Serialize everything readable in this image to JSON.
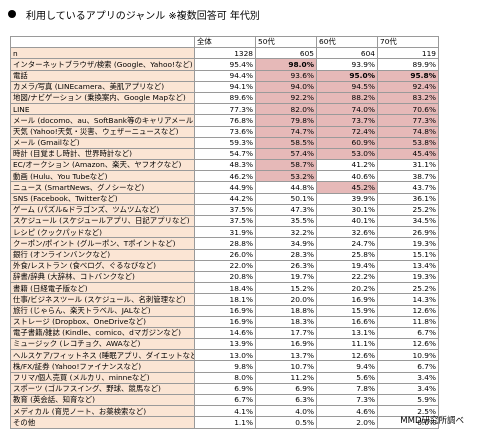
{
  "title": "利用しているアプリのジャンル ※複数回答可 年代別",
  "source": "MMD研究所調べ",
  "headers": [
    "",
    "全体",
    "50代",
    "60代",
    "70代"
  ],
  "rows": [
    {
      "label": "n",
      "values": [
        "1328",
        "605",
        "604",
        "119"
      ],
      "hl": [
        false,
        false,
        false,
        false
      ],
      "bold": [
        false,
        false,
        false,
        false
      ]
    },
    {
      "label": "インターネットブラウザ/検索 (Google、Yahoo!など)",
      "values": [
        "95.4%",
        "98.0%",
        "93.9%",
        "89.9%"
      ],
      "hl": [
        false,
        true,
        false,
        false
      ],
      "bold": [
        false,
        true,
        false,
        false
      ]
    },
    {
      "label": "電話",
      "values": [
        "94.4%",
        "93.6%",
        "95.0%",
        "95.8%"
      ],
      "hl": [
        false,
        true,
        true,
        true
      ],
      "bold": [
        false,
        false,
        true,
        true
      ]
    },
    {
      "label": "カメラ/写真 (LINEcamera、美肌アプリなど)",
      "values": [
        "94.1%",
        "94.0%",
        "94.5%",
        "92.4%"
      ],
      "hl": [
        false,
        true,
        true,
        true
      ],
      "bold": [
        false,
        false,
        false,
        false
      ]
    },
    {
      "label": "地図/ナビゲーション (乗換案内、Google Mapなど)",
      "values": [
        "89.6%",
        "92.2%",
        "88.2%",
        "83.2%"
      ],
      "hl": [
        false,
        true,
        true,
        true
      ],
      "bold": [
        false,
        false,
        false,
        false
      ]
    },
    {
      "label": "LINE",
      "values": [
        "77.3%",
        "82.0%",
        "74.0%",
        "70.6%"
      ],
      "hl": [
        false,
        true,
        true,
        true
      ],
      "bold": [
        false,
        false,
        false,
        false
      ]
    },
    {
      "label": "メール (docomo、au、SoftBank等のキャリアメール)",
      "values": [
        "76.8%",
        "79.8%",
        "73.7%",
        "77.3%"
      ],
      "hl": [
        false,
        true,
        true,
        true
      ],
      "bold": [
        false,
        false,
        false,
        false
      ]
    },
    {
      "label": "天気 (Yahoo!天気・災害、ウェザーニュースなど)",
      "values": [
        "73.6%",
        "74.7%",
        "72.4%",
        "74.8%"
      ],
      "hl": [
        false,
        true,
        true,
        true
      ],
      "bold": [
        false,
        false,
        false,
        false
      ]
    },
    {
      "label": "メール (Gmailなど)",
      "values": [
        "59.3%",
        "58.5%",
        "60.9%",
        "53.8%"
      ],
      "hl": [
        false,
        true,
        true,
        true
      ],
      "bold": [
        false,
        false,
        false,
        false
      ]
    },
    {
      "label": "時計 (目覚まし時計、世界時計など)",
      "values": [
        "54.7%",
        "57.4%",
        "53.0%",
        "45.4%"
      ],
      "hl": [
        false,
        true,
        true,
        true
      ],
      "bold": [
        false,
        false,
        false,
        false
      ]
    },
    {
      "label": "EC/オークション (Amazon、楽天、ヤフオクなど)",
      "values": [
        "48.3%",
        "58.7%",
        "41.2%",
        "31.1%"
      ],
      "hl": [
        false,
        true,
        false,
        false
      ],
      "bold": [
        false,
        false,
        false,
        false
      ]
    },
    {
      "label": "動画 (Hulu、You Tubeなど)",
      "values": [
        "46.2%",
        "53.2%",
        "40.6%",
        "38.7%"
      ],
      "hl": [
        false,
        true,
        false,
        false
      ],
      "bold": [
        false,
        false,
        false,
        false
      ]
    },
    {
      "label": "ニュース (SmartNews、グノシーなど)",
      "values": [
        "44.9%",
        "44.8%",
        "45.2%",
        "43.7%"
      ],
      "hl": [
        false,
        false,
        true,
        false
      ],
      "bold": [
        false,
        false,
        false,
        false
      ]
    },
    {
      "label": "SNS (Facebook、Twitterなど)",
      "values": [
        "44.2%",
        "50.1%",
        "39.9%",
        "36.1%"
      ],
      "hl": [
        false,
        false,
        false,
        false
      ],
      "bold": [
        false,
        false,
        false,
        false
      ]
    },
    {
      "label": "ゲーム (パズル&ドラゴンズ、ツムツムなど)",
      "values": [
        "37.5%",
        "47.3%",
        "30.1%",
        "25.2%"
      ],
      "hl": [
        false,
        false,
        false,
        false
      ],
      "bold": [
        false,
        false,
        false,
        false
      ]
    },
    {
      "label": "スケジュール (スケジュールアプリ、日記アプリなど)",
      "values": [
        "37.5%",
        "35.5%",
        "40.1%",
        "34.5%"
      ],
      "hl": [
        false,
        false,
        false,
        false
      ],
      "bold": [
        false,
        false,
        false,
        false
      ]
    },
    {
      "label": "レシピ (クックパッドなど)",
      "values": [
        "31.9%",
        "32.2%",
        "32.6%",
        "26.9%"
      ],
      "hl": [
        false,
        false,
        false,
        false
      ],
      "bold": [
        false,
        false,
        false,
        false
      ]
    },
    {
      "label": "クーポン/ポイント (グルーポン、Tポイントなど)",
      "values": [
        "28.8%",
        "34.9%",
        "24.7%",
        "19.3%"
      ],
      "hl": [
        false,
        false,
        false,
        false
      ],
      "bold": [
        false,
        false,
        false,
        false
      ]
    },
    {
      "label": "銀行 (オンラインバンクなど)",
      "values": [
        "26.0%",
        "28.3%",
        "25.8%",
        "15.1%"
      ],
      "hl": [
        false,
        false,
        false,
        false
      ],
      "bold": [
        false,
        false,
        false,
        false
      ]
    },
    {
      "label": "外食/レストラン (食べログ、ぐるなびなど)",
      "values": [
        "22.0%",
        "26.3%",
        "19.4%",
        "13.4%"
      ],
      "hl": [
        false,
        false,
        false,
        false
      ],
      "bold": [
        false,
        false,
        false,
        false
      ]
    },
    {
      "label": "辞書/辞典 (大辞林、コトバンクなど)",
      "values": [
        "20.8%",
        "19.7%",
        "22.2%",
        "19.3%"
      ],
      "hl": [
        false,
        false,
        false,
        false
      ],
      "bold": [
        false,
        false,
        false,
        false
      ]
    },
    {
      "label": "書籍 (日経電子版など)",
      "values": [
        "18.4%",
        "15.2%",
        "20.2%",
        "25.2%"
      ],
      "hl": [
        false,
        false,
        false,
        false
      ],
      "bold": [
        false,
        false,
        false,
        false
      ]
    },
    {
      "label": "仕事/ビジネスツール (スケジュール、名刺管理など)",
      "values": [
        "18.1%",
        "20.0%",
        "16.9%",
        "14.3%"
      ],
      "hl": [
        false,
        false,
        false,
        false
      ],
      "bold": [
        false,
        false,
        false,
        false
      ]
    },
    {
      "label": "旅行 (じゃらん、楽天トラベル、JALなど)",
      "values": [
        "16.9%",
        "18.8%",
        "15.9%",
        "12.6%"
      ],
      "hl": [
        false,
        false,
        false,
        false
      ],
      "bold": [
        false,
        false,
        false,
        false
      ]
    },
    {
      "label": "ストレージ (Dropbox、OneDriveなど)",
      "values": [
        "16.9%",
        "18.3%",
        "16.6%",
        "11.8%"
      ],
      "hl": [
        false,
        false,
        false,
        false
      ],
      "bold": [
        false,
        false,
        false,
        false
      ]
    },
    {
      "label": "電子書籍/雑誌 (Kindle、comico、dマガジンなど)",
      "values": [
        "14.6%",
        "17.7%",
        "13.1%",
        "6.7%"
      ],
      "hl": [
        false,
        false,
        false,
        false
      ],
      "bold": [
        false,
        false,
        false,
        false
      ]
    },
    {
      "label": "ミュージック (レコチョク、AWAなど)",
      "values": [
        "13.9%",
        "16.9%",
        "11.1%",
        "12.6%"
      ],
      "hl": [
        false,
        false,
        false,
        false
      ],
      "bold": [
        false,
        false,
        false,
        false
      ]
    },
    {
      "label": "ヘルスケア/フィットネス (睡眠アプリ、ダイエットなど)",
      "values": [
        "13.0%",
        "13.7%",
        "12.6%",
        "10.9%"
      ],
      "hl": [
        false,
        false,
        false,
        false
      ],
      "bold": [
        false,
        false,
        false,
        false
      ]
    },
    {
      "label": "株/FX/証券 (Yahoo!ファイナンスなど)",
      "values": [
        "9.8%",
        "10.7%",
        "9.4%",
        "6.7%"
      ],
      "hl": [
        false,
        false,
        false,
        false
      ],
      "bold": [
        false,
        false,
        false,
        false
      ]
    },
    {
      "label": "フリマ/個人売買 (メルカリ、minneなど)",
      "values": [
        "8.0%",
        "11.2%",
        "5.6%",
        "3.4%"
      ],
      "hl": [
        false,
        false,
        false,
        false
      ],
      "bold": [
        false,
        false,
        false,
        false
      ]
    },
    {
      "label": "スポーツ (ゴルフスイング、野球、競馬など)",
      "values": [
        "6.9%",
        "6.9%",
        "7.8%",
        "3.4%"
      ],
      "hl": [
        false,
        false,
        false,
        false
      ],
      "bold": [
        false,
        false,
        false,
        false
      ]
    },
    {
      "label": "教育 (英会話、知育など)",
      "values": [
        "6.7%",
        "6.3%",
        "7.3%",
        "5.9%"
      ],
      "hl": [
        false,
        false,
        false,
        false
      ],
      "bold": [
        false,
        false,
        false,
        false
      ]
    },
    {
      "label": "メディカル (育児ノート、お薬検索など)",
      "values": [
        "4.1%",
        "4.0%",
        "4.6%",
        "2.5%"
      ],
      "hl": [
        false,
        false,
        false,
        false
      ],
      "bold": [
        false,
        false,
        false,
        false
      ]
    },
    {
      "label": "その他",
      "values": [
        "1.1%",
        "0.5%",
        "2.0%",
        "0.0%"
      ],
      "hl": [
        false,
        false,
        false,
        false
      ],
      "bold": [
        false,
        false,
        false,
        false
      ]
    }
  ]
}
